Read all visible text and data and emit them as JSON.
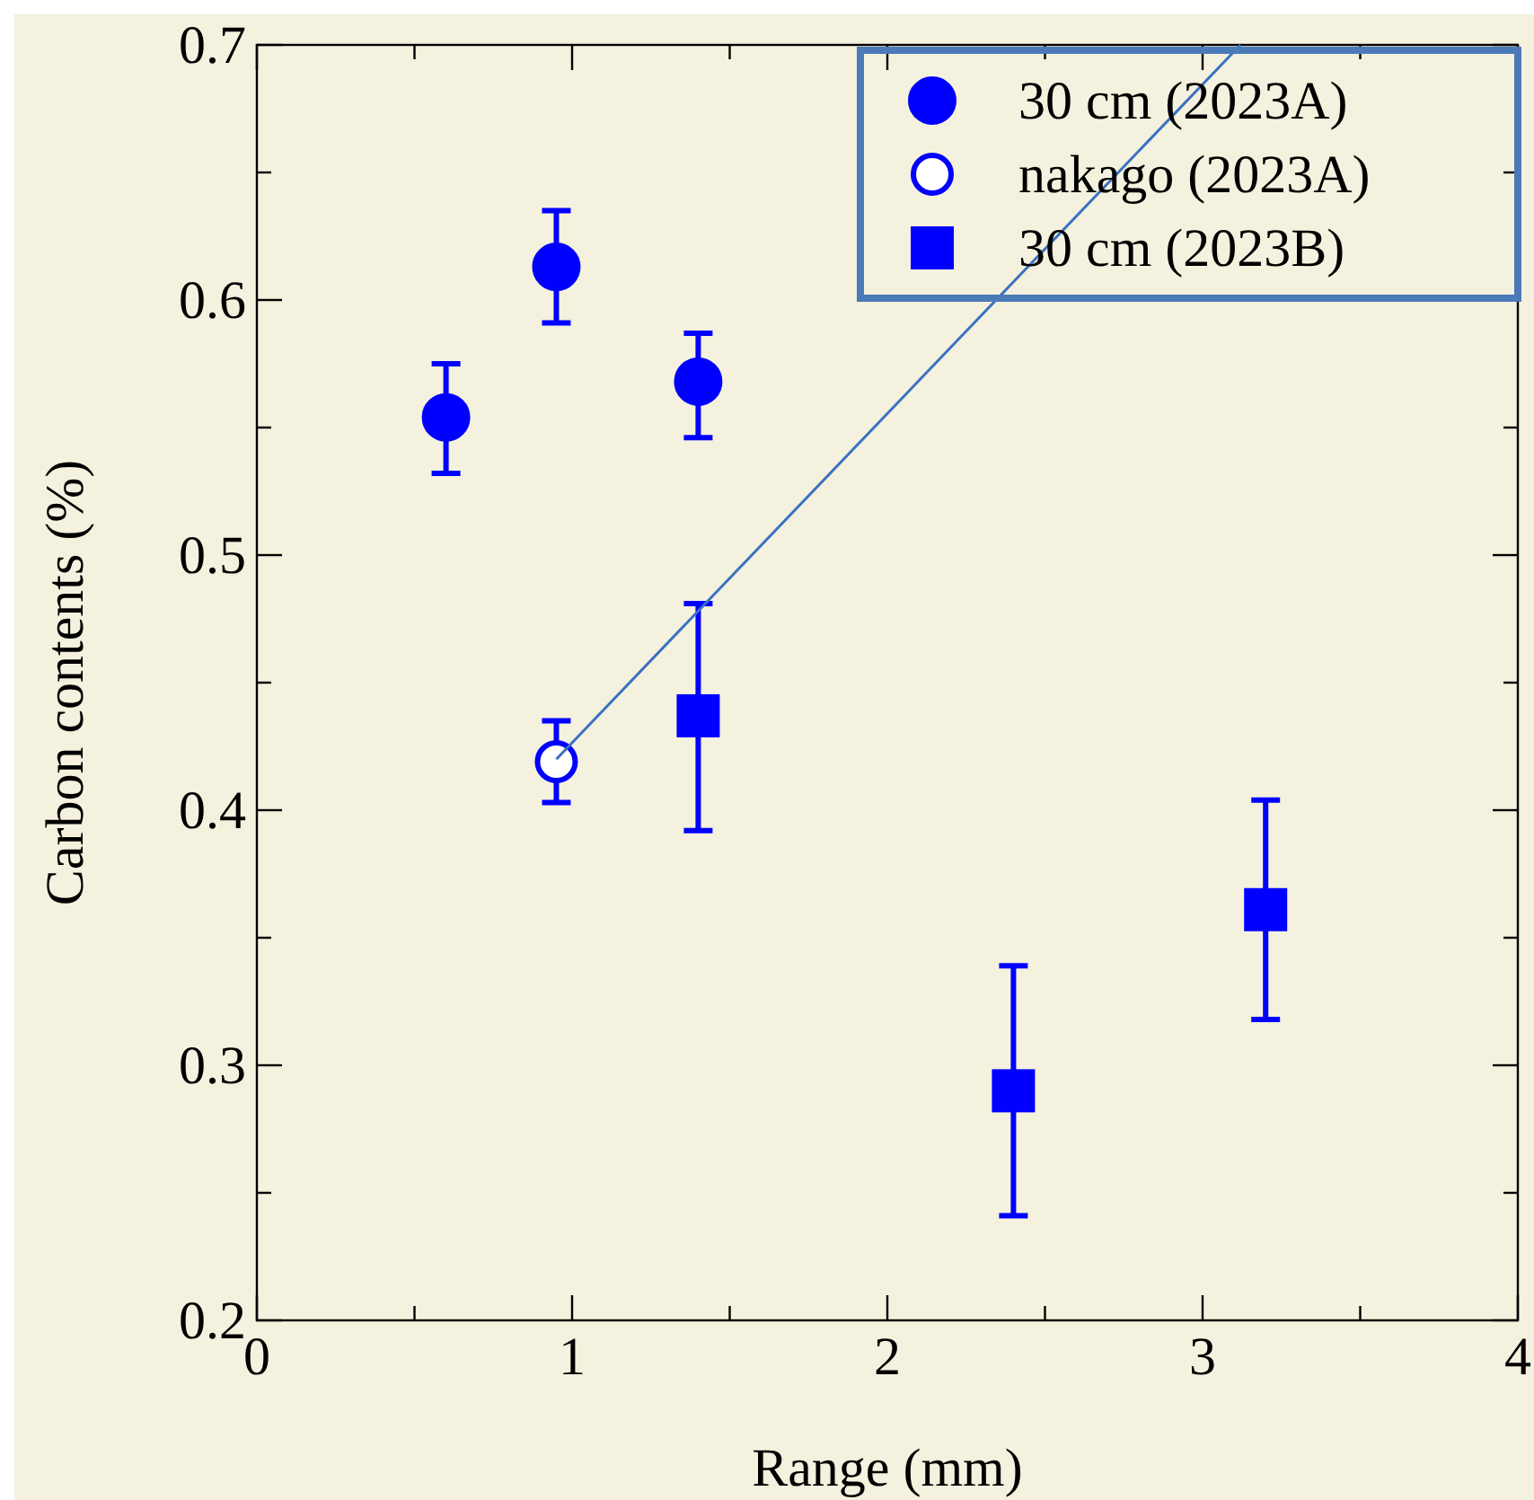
{
  "chart_data": {
    "type": "scatter",
    "xlabel": "Range (mm)",
    "ylabel": "Carbon contents (%)",
    "xlim": [
      0,
      4
    ],
    "ylim": [
      0.2,
      0.7
    ],
    "xticks": [
      0,
      {
        "value": 0.5,
        "label": null
      },
      1,
      {
        "value": 1.5,
        "label": null
      },
      2,
      {
        "value": 2.5,
        "label": null
      },
      3,
      {
        "value": 3.5,
        "label": null
      },
      4
    ],
    "yticks": [
      0.2,
      {
        "value": 0.25,
        "label": null
      },
      0.3,
      {
        "value": 0.35,
        "label": null
      },
      0.4,
      {
        "value": 0.45,
        "label": null
      },
      0.5,
      {
        "value": 0.55,
        "label": null
      },
      0.6,
      {
        "value": 0.65,
        "label": null
      },
      0.7
    ],
    "grid": false,
    "legend": "top right",
    "series": [
      {
        "name": "30 cm (2023A)",
        "color": "#0000ff",
        "marker": "circle",
        "x": [
          0.6,
          0.95,
          1.4
        ],
        "values": [
          0.554,
          0.613,
          0.568
        ],
        "errors": [
          [
            0.532,
            0.575
          ],
          [
            0.591,
            0.635
          ],
          [
            0.546,
            0.587
          ]
        ]
      },
      {
        "name": "nakago (2023A)",
        "color": "#0000ff",
        "marker": "circle_open",
        "x": [
          0.95
        ],
        "values": [
          0.419
        ],
        "errors": [
          [
            0.403,
            0.435
          ]
        ]
      },
      {
        "name": "30 cm (2023B)",
        "color": "#0000ff",
        "marker": "square",
        "x": [
          1.4,
          2.4,
          3.2
        ],
        "values": [
          0.437,
          0.29,
          0.361
        ],
        "errors": [
          [
            0.392,
            0.481
          ],
          [
            0.241,
            0.339
          ],
          [
            0.318,
            0.404
          ]
        ]
      },
      {
        "type": "line",
        "color": "#3a72c0",
        "marker": "none",
        "x": [
          0.95,
          3.12
        ],
        "values": [
          0.42,
          0.7
        ]
      }
    ]
  }
}
